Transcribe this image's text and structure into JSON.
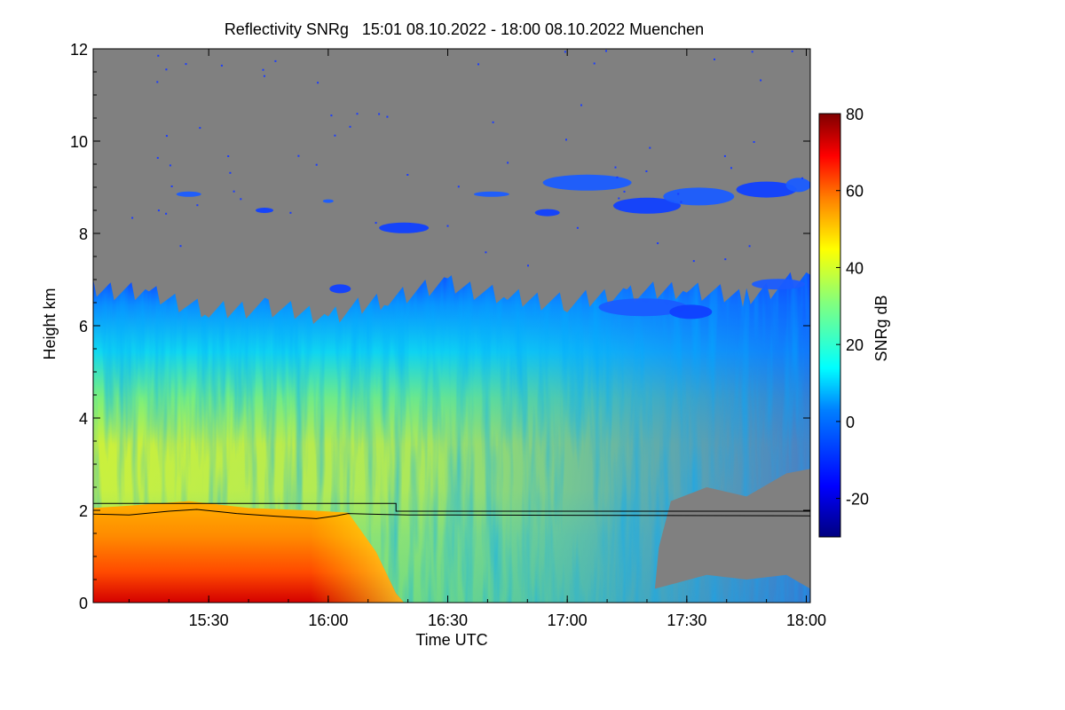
{
  "chart_data": {
    "type": "heatmap",
    "title": "Reflectivity SNRg   15:01 08.10.2022 - 18:00 08.10.2022 Muenchen",
    "xlabel": "Time UTC",
    "ylabel": "Height km",
    "x_range": [
      "15:01",
      "18:01"
    ],
    "x_ticks": [
      "15:30",
      "16:00",
      "16:30",
      "17:00",
      "17:30",
      "18:00"
    ],
    "ylim": [
      0,
      12
    ],
    "y_ticks": [
      0,
      2,
      4,
      6,
      8,
      10,
      12
    ],
    "colorbar": {
      "label": "SNRg dB",
      "range": [
        -30,
        80
      ],
      "ticks": [
        -20,
        0,
        20,
        40,
        60,
        80
      ],
      "colors": [
        "#00007f",
        "#0000ff",
        "#0080ff",
        "#00ffff",
        "#80ff80",
        "#ffff00",
        "#ff8000",
        "#ff0000",
        "#7f0000"
      ]
    },
    "no_signal_color": "#808080",
    "cloud_top_profile": {
      "x": [
        "15:01",
        "15:15",
        "15:30",
        "15:45",
        "16:00",
        "16:15",
        "16:30",
        "16:45",
        "17:00",
        "17:15",
        "17:30",
        "17:45",
        "18:01"
      ],
      "y": [
        6.8,
        6.7,
        6.3,
        6.4,
        6.2,
        6.6,
        6.9,
        6.6,
        6.5,
        6.7,
        6.8,
        6.6,
        7.1
      ]
    },
    "lines": [
      {
        "name": "upper step line",
        "x": [
          "15:01",
          "16:17",
          "16:17",
          "18:01"
        ],
        "y": [
          2.15,
          2.15,
          1.98,
          1.98
        ]
      },
      {
        "name": "lower line",
        "x": [
          "15:01",
          "15:10",
          "15:20",
          "15:27",
          "15:37",
          "15:47",
          "15:57",
          "16:02",
          "16:05",
          "16:10",
          "16:20",
          "18:01"
        ],
        "y": [
          1.92,
          1.9,
          1.98,
          2.02,
          1.93,
          1.87,
          1.82,
          1.88,
          1.93,
          1.92,
          1.9,
          1.88
        ]
      }
    ]
  }
}
